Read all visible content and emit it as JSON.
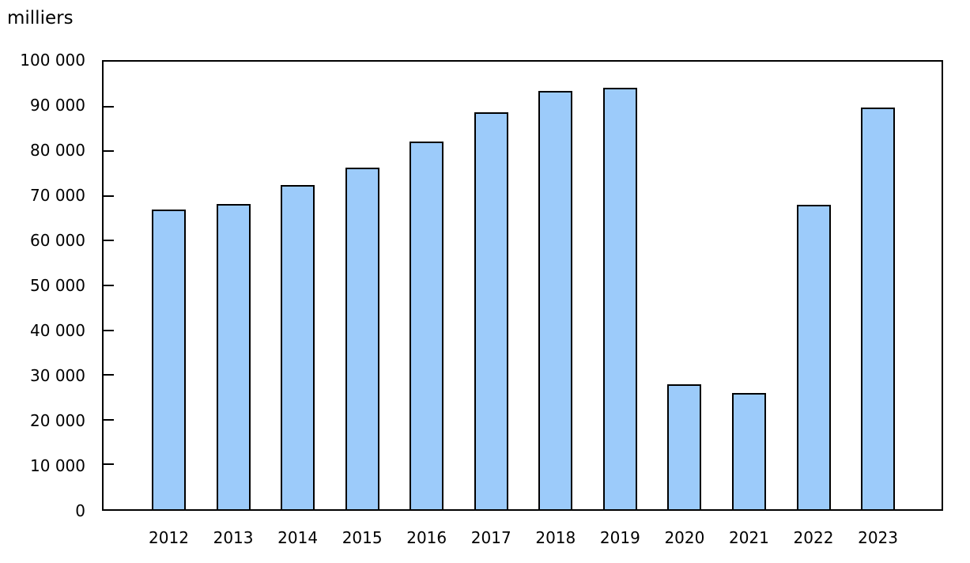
{
  "chart_data": {
    "type": "bar",
    "ylabel": "milliers",
    "categories": [
      "2012",
      "2013",
      "2014",
      "2015",
      "2016",
      "2017",
      "2018",
      "2019",
      "2020",
      "2021",
      "2022",
      "2023"
    ],
    "values": [
      67000,
      68200,
      72400,
      76300,
      82200,
      88700,
      93500,
      94200,
      27900,
      26000,
      68000,
      89800
    ],
    "ylim": [
      0,
      100000
    ],
    "ytick_interval": 10000,
    "ytick_labels": [
      "0",
      "10 000",
      "20 000",
      "30 000",
      "40 000",
      "50 000",
      "60 000",
      "70 000",
      "80 000",
      "90 000",
      "100 000"
    ],
    "grid": false,
    "legend": "none",
    "bar_fill_color": "#9CCBFA",
    "bar_border_color": "#000000",
    "axis_color": "#000000",
    "text_color": "#000000"
  }
}
